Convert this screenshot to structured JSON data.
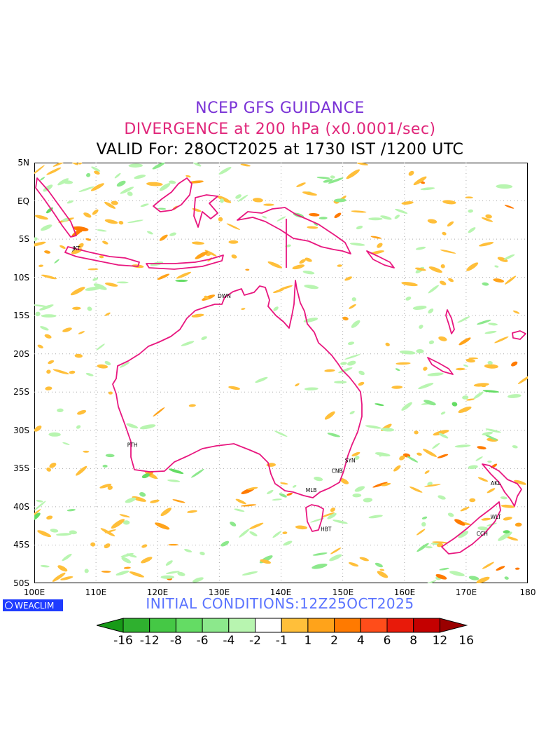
{
  "title": {
    "line1": "NCEP GFS GUIDANCE",
    "line2": "DIVERGENCE at 200 hPa (x0.0001/sec)",
    "line3": "VALID For: 28OCT2025 at 1730 IST /1200 UTC"
  },
  "colors": {
    "title1": "#7a33d6",
    "title2": "#e0267a",
    "init": "#5a73ff",
    "coast": "#e8177f",
    "positive": [
      "#ffbf3a",
      "#ffa31a",
      "#ff7a00",
      "#ff4d1a",
      "#e81a0a",
      "#c40000",
      "#9a0000"
    ],
    "negative": [
      "#179a17",
      "#2fb02f",
      "#45c845",
      "#64dc64",
      "#8ce88c",
      "#b8f5b0"
    ]
  },
  "axes": {
    "lat_labels": [
      "5N",
      "EQ",
      "5S",
      "10S",
      "15S",
      "20S",
      "25S",
      "30S",
      "35S",
      "40S",
      "45S",
      "50S"
    ],
    "lon_labels": [
      "100E",
      "110E",
      "120E",
      "130E",
      "140E",
      "150E",
      "160E",
      "170E",
      "180"
    ],
    "lat_range": [
      -50,
      5
    ],
    "lon_range": [
      100,
      180
    ]
  },
  "stations": [
    {
      "code": "JKT",
      "lon": 106.8,
      "lat": -6.2
    },
    {
      "code": "DWN",
      "lon": 130.8,
      "lat": -12.4
    },
    {
      "code": "PTH",
      "lon": 115.9,
      "lat": -31.9
    },
    {
      "code": "SYN",
      "lon": 151.2,
      "lat": -33.9
    },
    {
      "code": "CNB",
      "lon": 149.1,
      "lat": -35.3
    },
    {
      "code": "MLB",
      "lon": 144.9,
      "lat": -37.8
    },
    {
      "code": "HBT",
      "lon": 147.3,
      "lat": -42.9
    },
    {
      "code": "AKL",
      "lon": 174.8,
      "lat": -36.9
    },
    {
      "code": "WLT",
      "lon": 174.8,
      "lat": -41.3
    },
    {
      "code": "CCH",
      "lon": 172.6,
      "lat": -43.5
    }
  ],
  "init_conditions": "INITIAL CONDITIONS:12Z25OCT2025",
  "logo_text": "WEACLIM",
  "colorbar_labels": [
    "-16",
    "-12",
    "-8",
    "-6",
    "-4",
    "-2",
    "-1",
    "1",
    "2",
    "4",
    "6",
    "8",
    "12",
    "16"
  ]
}
